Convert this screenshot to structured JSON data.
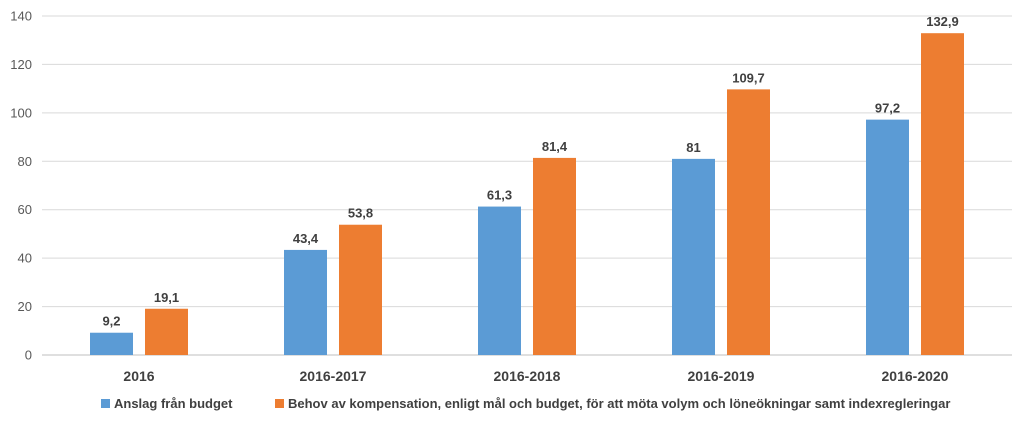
{
  "chart_data": {
    "type": "bar",
    "title": "",
    "xlabel": "",
    "ylabel": "",
    "ylim": [
      0,
      140
    ],
    "ytick_step": 20,
    "grid": true,
    "legend_position": "bottom",
    "categories": [
      "2016",
      "2016-2017",
      "2016-2018",
      "2016-2019",
      "2016-2020"
    ],
    "series": [
      {
        "name": "Anslag från budget",
        "color": "#5b9bd5",
        "values": [
          9.2,
          43.4,
          61.3,
          81,
          97.2
        ],
        "labels": [
          "9,2",
          "43,4",
          "61,3",
          "81",
          "97,2"
        ]
      },
      {
        "name": "Behov av kompensation, enligt mål och budget, för att möta volym och löneökningar samt indexregleringar",
        "color": "#ed7d31",
        "values": [
          19.1,
          53.8,
          81.4,
          109.7,
          132.9
        ],
        "labels": [
          "19,1",
          "53,8",
          "81,4",
          "109,7",
          "132,9"
        ]
      }
    ]
  }
}
